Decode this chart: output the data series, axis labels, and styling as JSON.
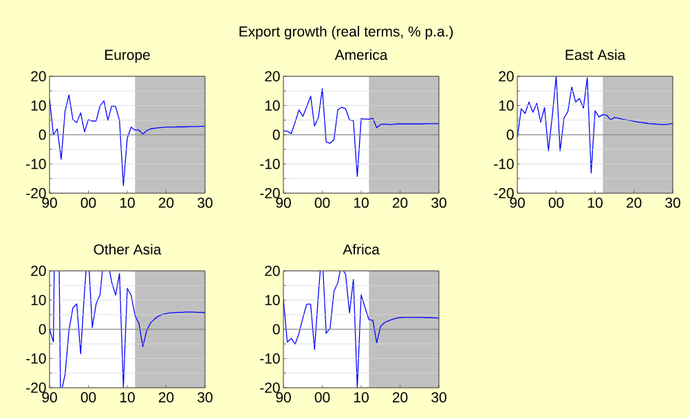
{
  "chart_data": [
    {
      "type": "line",
      "title": "Europe",
      "annotations": [
        "Export growth (real terms, % p.a.)"
      ],
      "color": "#0000ff",
      "x": [
        1990,
        1991,
        1992,
        1993,
        1994,
        1995,
        1996,
        1997,
        1998,
        1999,
        2000,
        2001,
        2002,
        2003,
        2004,
        2005,
        2006,
        2007,
        2008,
        2009,
        2010,
        2011,
        2012,
        2013,
        2014,
        2015,
        2016,
        2017,
        2018,
        2019,
        2020,
        2021,
        2022,
        2023,
        2024,
        2025,
        2026,
        2027,
        2028,
        2029,
        2030
      ],
      "values": [
        12.2,
        0.0,
        2.0,
        -8.4,
        8.1,
        13.6,
        5.2,
        4.2,
        7.5,
        1.0,
        5.2,
        4.7,
        4.7,
        9.9,
        11.6,
        4.9,
        9.9,
        9.6,
        4.9,
        -17.4,
        -1.1,
        2.6,
        1.6,
        1.6,
        0.2,
        1.4,
        2.0,
        2.2,
        2.4,
        2.5,
        2.6,
        2.6,
        2.6,
        2.7,
        2.7,
        2.7,
        2.8,
        2.8,
        2.8,
        2.9,
        2.9
      ],
      "xlim": [
        1990,
        2030
      ],
      "xticks": [
        {
          "value": 1990,
          "label": "90"
        },
        {
          "value": 2000,
          "label": "00"
        },
        {
          "value": 2010,
          "label": "10"
        },
        {
          "value": 2020,
          "label": "20"
        },
        {
          "value": 2030,
          "label": "30"
        }
      ],
      "ylim": [
        -20,
        20
      ],
      "yticks": [
        -20,
        {
          "value": -15,
          "label": null
        },
        -10,
        {
          "value": -5,
          "label": null
        },
        0,
        {
          "value": 5,
          "label": null
        },
        10,
        {
          "value": 15,
          "label": null
        },
        20
      ],
      "grid": "y",
      "bands": [
        {
          "axis": "x",
          "from": 2012,
          "to": 2030,
          "color": "#c0c0c0"
        }
      ],
      "ref_lines": [
        {
          "axis": "y",
          "value": 0,
          "color": "#000000"
        }
      ]
    },
    {
      "type": "line",
      "title": "America",
      "color": "#0000ff",
      "x": [
        1990,
        1991,
        1992,
        1993,
        1994,
        1995,
        1996,
        1997,
        1998,
        1999,
        2000,
        2001,
        2002,
        2003,
        2004,
        2005,
        2006,
        2007,
        2008,
        2009,
        2010,
        2011,
        2012,
        2013,
        2014,
        2015,
        2016,
        2017,
        2018,
        2019,
        2020,
        2021,
        2022,
        2023,
        2024,
        2025,
        2026,
        2027,
        2028,
        2029,
        2030
      ],
      "values": [
        1.3,
        1.2,
        0.4,
        4.2,
        8.5,
        6.3,
        9.6,
        13.2,
        3.0,
        5.9,
        15.8,
        -2.5,
        -2.9,
        -1.7,
        8.6,
        9.4,
        8.9,
        5.1,
        4.8,
        -14.3,
        5.5,
        5.4,
        5.3,
        5.6,
        2.4,
        3.5,
        3.7,
        3.5,
        3.5,
        3.7,
        3.7,
        3.7,
        3.7,
        3.7,
        3.7,
        3.7,
        3.7,
        3.8,
        3.8,
        3.8,
        3.8
      ],
      "xlim": [
        1990,
        2030
      ],
      "xticks": [
        {
          "value": 1990,
          "label": "90"
        },
        {
          "value": 2000,
          "label": "00"
        },
        {
          "value": 2010,
          "label": "10"
        },
        {
          "value": 2020,
          "label": "20"
        },
        {
          "value": 2030,
          "label": "30"
        }
      ],
      "ylim": [
        -20,
        20
      ],
      "yticks": [
        -20,
        {
          "value": -15,
          "label": null
        },
        -10,
        {
          "value": -5,
          "label": null
        },
        0,
        {
          "value": 5,
          "label": null
        },
        10,
        {
          "value": 15,
          "label": null
        },
        20
      ],
      "grid": "y",
      "bands": [
        {
          "axis": "x",
          "from": 2012,
          "to": 2030,
          "color": "#c0c0c0"
        }
      ],
      "ref_lines": [
        {
          "axis": "y",
          "value": 0,
          "color": "#000000"
        }
      ]
    },
    {
      "type": "line",
      "title": "East Asia",
      "color": "#0000ff",
      "x": [
        1990,
        1991,
        1992,
        1993,
        1994,
        1995,
        1996,
        1997,
        1998,
        1999,
        2000,
        2001,
        2002,
        2003,
        2004,
        2005,
        2006,
        2007,
        2008,
        2009,
        2010,
        2011,
        2012,
        2013,
        2014,
        2015,
        2016,
        2017,
        2018,
        2019,
        2020,
        2021,
        2022,
        2023,
        2024,
        2025,
        2026,
        2027,
        2028,
        2029,
        2030
      ],
      "values": [
        -0.9,
        8.9,
        7.3,
        11.2,
        7.7,
        10.8,
        4.3,
        9.3,
        -5.5,
        6.5,
        20,
        -5.5,
        5.7,
        7.9,
        16.3,
        11.2,
        12.4,
        9.1,
        19.5,
        -13.1,
        8.2,
        6.1,
        6.9,
        6.7,
        5.1,
        5.9,
        5.7,
        5.3,
        5.1,
        4.9,
        4.6,
        4.4,
        4.2,
        4.0,
        3.8,
        3.7,
        3.6,
        3.5,
        3.5,
        3.6,
        3.9
      ],
      "xlim": [
        1990,
        2030
      ],
      "xticks": [
        {
          "value": 1990,
          "label": "90"
        },
        {
          "value": 2000,
          "label": "00"
        },
        {
          "value": 2010,
          "label": "10"
        },
        {
          "value": 2020,
          "label": "20"
        },
        {
          "value": 2030,
          "label": "30"
        }
      ],
      "ylim": [
        -20,
        20
      ],
      "yticks": [
        -20,
        {
          "value": -15,
          "label": null
        },
        -10,
        {
          "value": -5,
          "label": null
        },
        0,
        {
          "value": 5,
          "label": null
        },
        10,
        {
          "value": 15,
          "label": null
        },
        20
      ],
      "grid": "y",
      "bands": [
        {
          "axis": "x",
          "from": 2012,
          "to": 2030,
          "color": "#c0c0c0"
        }
      ],
      "ref_lines": [
        {
          "axis": "y",
          "value": 0,
          "color": "#000000"
        }
      ]
    },
    {
      "type": "line",
      "title": "Other Asia",
      "color": "#0000ff",
      "x": [
        1990,
        1991,
        1991.2,
        1992,
        1992.5,
        1992.8,
        1993,
        1993.25,
        1994,
        1995,
        1996,
        1997,
        1998,
        1999,
        1999.4,
        2000,
        2000.2,
        2001,
        2002,
        2003,
        2003.6,
        2004,
        2005,
        2005.45,
        2006,
        2007,
        2008,
        2009,
        2010,
        2011,
        2012,
        2013,
        2014,
        2015,
        2016,
        2017,
        2018,
        2019,
        2020,
        2021,
        2022,
        2023,
        2024,
        2025,
        2026,
        2027,
        2028,
        2029,
        2030
      ],
      "values": [
        0.0,
        -4.3,
        20,
        null,
        20,
        -20,
        null,
        -20,
        -15.5,
        -0.4,
        7.3,
        8.7,
        -8.4,
        13,
        20,
        null,
        20,
        0.6,
        8.8,
        11.8,
        20,
        null,
        null,
        20,
        16.1,
        11.7,
        19.1,
        -20,
        14.0,
        11.7,
        4.7,
        2.0,
        -5.9,
        -0.4,
        2.2,
        3.5,
        4.5,
        5.1,
        5.4,
        5.6,
        5.7,
        5.8,
        5.8,
        5.9,
        5.9,
        5.9,
        5.8,
        5.8,
        5.7
      ],
      "xlim": [
        1990,
        2030
      ],
      "xticks": [
        {
          "value": 1990,
          "label": "90"
        },
        {
          "value": 2000,
          "label": "00"
        },
        {
          "value": 2010,
          "label": "10"
        },
        {
          "value": 2020,
          "label": "20"
        },
        {
          "value": 2030,
          "label": "30"
        }
      ],
      "ylim": [
        -20,
        20
      ],
      "yticks": [
        -20,
        {
          "value": -15,
          "label": null
        },
        -10,
        {
          "value": -5,
          "label": null
        },
        0,
        {
          "value": 5,
          "label": null
        },
        10,
        {
          "value": 15,
          "label": null
        },
        20
      ],
      "grid": "y",
      "bands": [
        {
          "axis": "x",
          "from": 2012,
          "to": 2030,
          "color": "#c0c0c0"
        }
      ],
      "ref_lines": [
        {
          "axis": "y",
          "value": 0,
          "color": "#000000"
        }
      ]
    },
    {
      "type": "line",
      "title": "Africa",
      "color": "#0000ff",
      "x": [
        1990,
        1991,
        1992,
        1993,
        1994,
        1995,
        1996,
        1997,
        1998,
        1999,
        1999.47,
        2000,
        2000.2,
        2001,
        2002,
        2003,
        2004,
        2004.6,
        2005,
        2005.45,
        2006,
        2007,
        2008,
        2009,
        2010,
        2011,
        2012,
        2013,
        2014,
        2015,
        2016,
        2017,
        2018,
        2019,
        2020,
        2021,
        2022,
        2023,
        2024,
        2025,
        2026,
        2027,
        2028,
        2029,
        2030
      ],
      "values": [
        10.1,
        -4.4,
        -3.1,
        -5.1,
        -1.4,
        3.9,
        8.6,
        8.6,
        -6.9,
        12,
        20,
        null,
        20,
        -1.4,
        0.4,
        13.0,
        16.0,
        20,
        null,
        20,
        18.8,
        5.6,
        17.1,
        -20,
        11.8,
        7.4,
        3.3,
        3.1,
        -4.6,
        1.0,
        2.3,
        2.9,
        3.4,
        3.8,
        4.0,
        4.1,
        4.1,
        4.1,
        4.1,
        4.1,
        4.1,
        4.0,
        4.0,
        3.9,
        3.8
      ],
      "xlim": [
        1990,
        2030
      ],
      "xticks": [
        {
          "value": 1990,
          "label": "90"
        },
        {
          "value": 2000,
          "label": "00"
        },
        {
          "value": 2010,
          "label": "10"
        },
        {
          "value": 2020,
          "label": "20"
        },
        {
          "value": 2030,
          "label": "30"
        }
      ],
      "ylim": [
        -20,
        20
      ],
      "yticks": [
        -20,
        {
          "value": -15,
          "label": null
        },
        -10,
        {
          "value": -5,
          "label": null
        },
        0,
        {
          "value": 5,
          "label": null
        },
        10,
        {
          "value": 15,
          "label": null
        },
        20
      ],
      "grid": "y",
      "bands": [
        {
          "axis": "x",
          "from": 2012,
          "to": 2030,
          "color": "#c0c0c0"
        }
      ],
      "ref_lines": [
        {
          "axis": "y",
          "value": 0,
          "color": "#000000"
        }
      ]
    }
  ]
}
